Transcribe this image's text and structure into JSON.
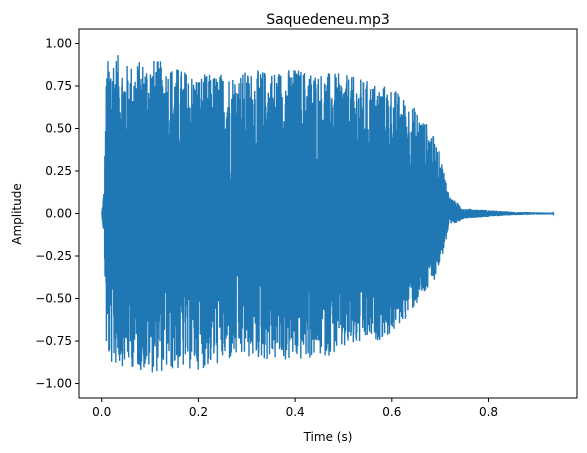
{
  "chart_data": {
    "type": "line",
    "title": "Saquedeneu.mp3",
    "xlabel": "Time (s)",
    "ylabel": "Amplitude",
    "xlim": [
      -0.047,
      0.983
    ],
    "ylim": [
      -1.085,
      1.085
    ],
    "x_ticks": [
      0.0,
      0.2,
      0.4,
      0.6,
      0.8
    ],
    "x_tick_labels": [
      "0.0",
      "0.2",
      "0.4",
      "0.6",
      "0.8"
    ],
    "y_ticks": [
      1.0,
      0.75,
      0.5,
      0.25,
      0.0,
      -0.25,
      -0.5,
      -0.75,
      -1.0
    ],
    "y_tick_labels": [
      "1.00",
      "0.75",
      "0.50",
      "0.25",
      "0.00",
      "−0.25",
      "−0.50",
      "−0.75",
      "−1.00"
    ],
    "grid": false,
    "legend": "none",
    "series_color": "#1f77b4",
    "duration_s": 0.935,
    "envelope": {
      "time": [
        0.0,
        0.005,
        0.01,
        0.02,
        0.05,
        0.1,
        0.2,
        0.3,
        0.4,
        0.5,
        0.6,
        0.65,
        0.68,
        0.7,
        0.72,
        0.75,
        0.8,
        0.85,
        0.935
      ],
      "max": [
        0.0,
        0.15,
        0.88,
        0.98,
        0.88,
        0.92,
        0.82,
        0.84,
        0.86,
        0.82,
        0.75,
        0.62,
        0.5,
        0.35,
        0.1,
        0.03,
        0.02,
        0.01,
        0.005
      ],
      "min": [
        0.0,
        -0.15,
        -0.85,
        -0.9,
        -0.9,
        -0.94,
        -0.92,
        -0.86,
        -0.88,
        -0.82,
        -0.72,
        -0.55,
        -0.45,
        -0.3,
        -0.08,
        -0.03,
        -0.02,
        -0.01,
        -0.005
      ]
    }
  }
}
